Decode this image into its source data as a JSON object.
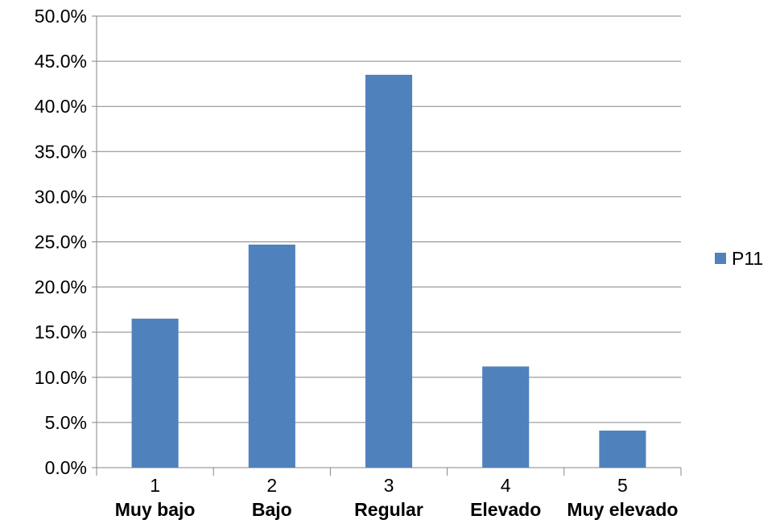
{
  "chart_data": {
    "type": "bar",
    "categories": [
      "1",
      "2",
      "3",
      "4",
      "5"
    ],
    "category_names": [
      "Muy bajo",
      "Bajo",
      "Regular",
      "Elevado",
      "Muy elevado"
    ],
    "series": [
      {
        "name": "P11",
        "values": [
          16.5,
          24.7,
          43.5,
          11.2,
          4.1
        ],
        "color": "#4f81bd"
      }
    ],
    "ylim": [
      0,
      50
    ],
    "ytick_step": 5,
    "ytick_format": "0.0%",
    "grid": true,
    "legend_position": "right"
  }
}
